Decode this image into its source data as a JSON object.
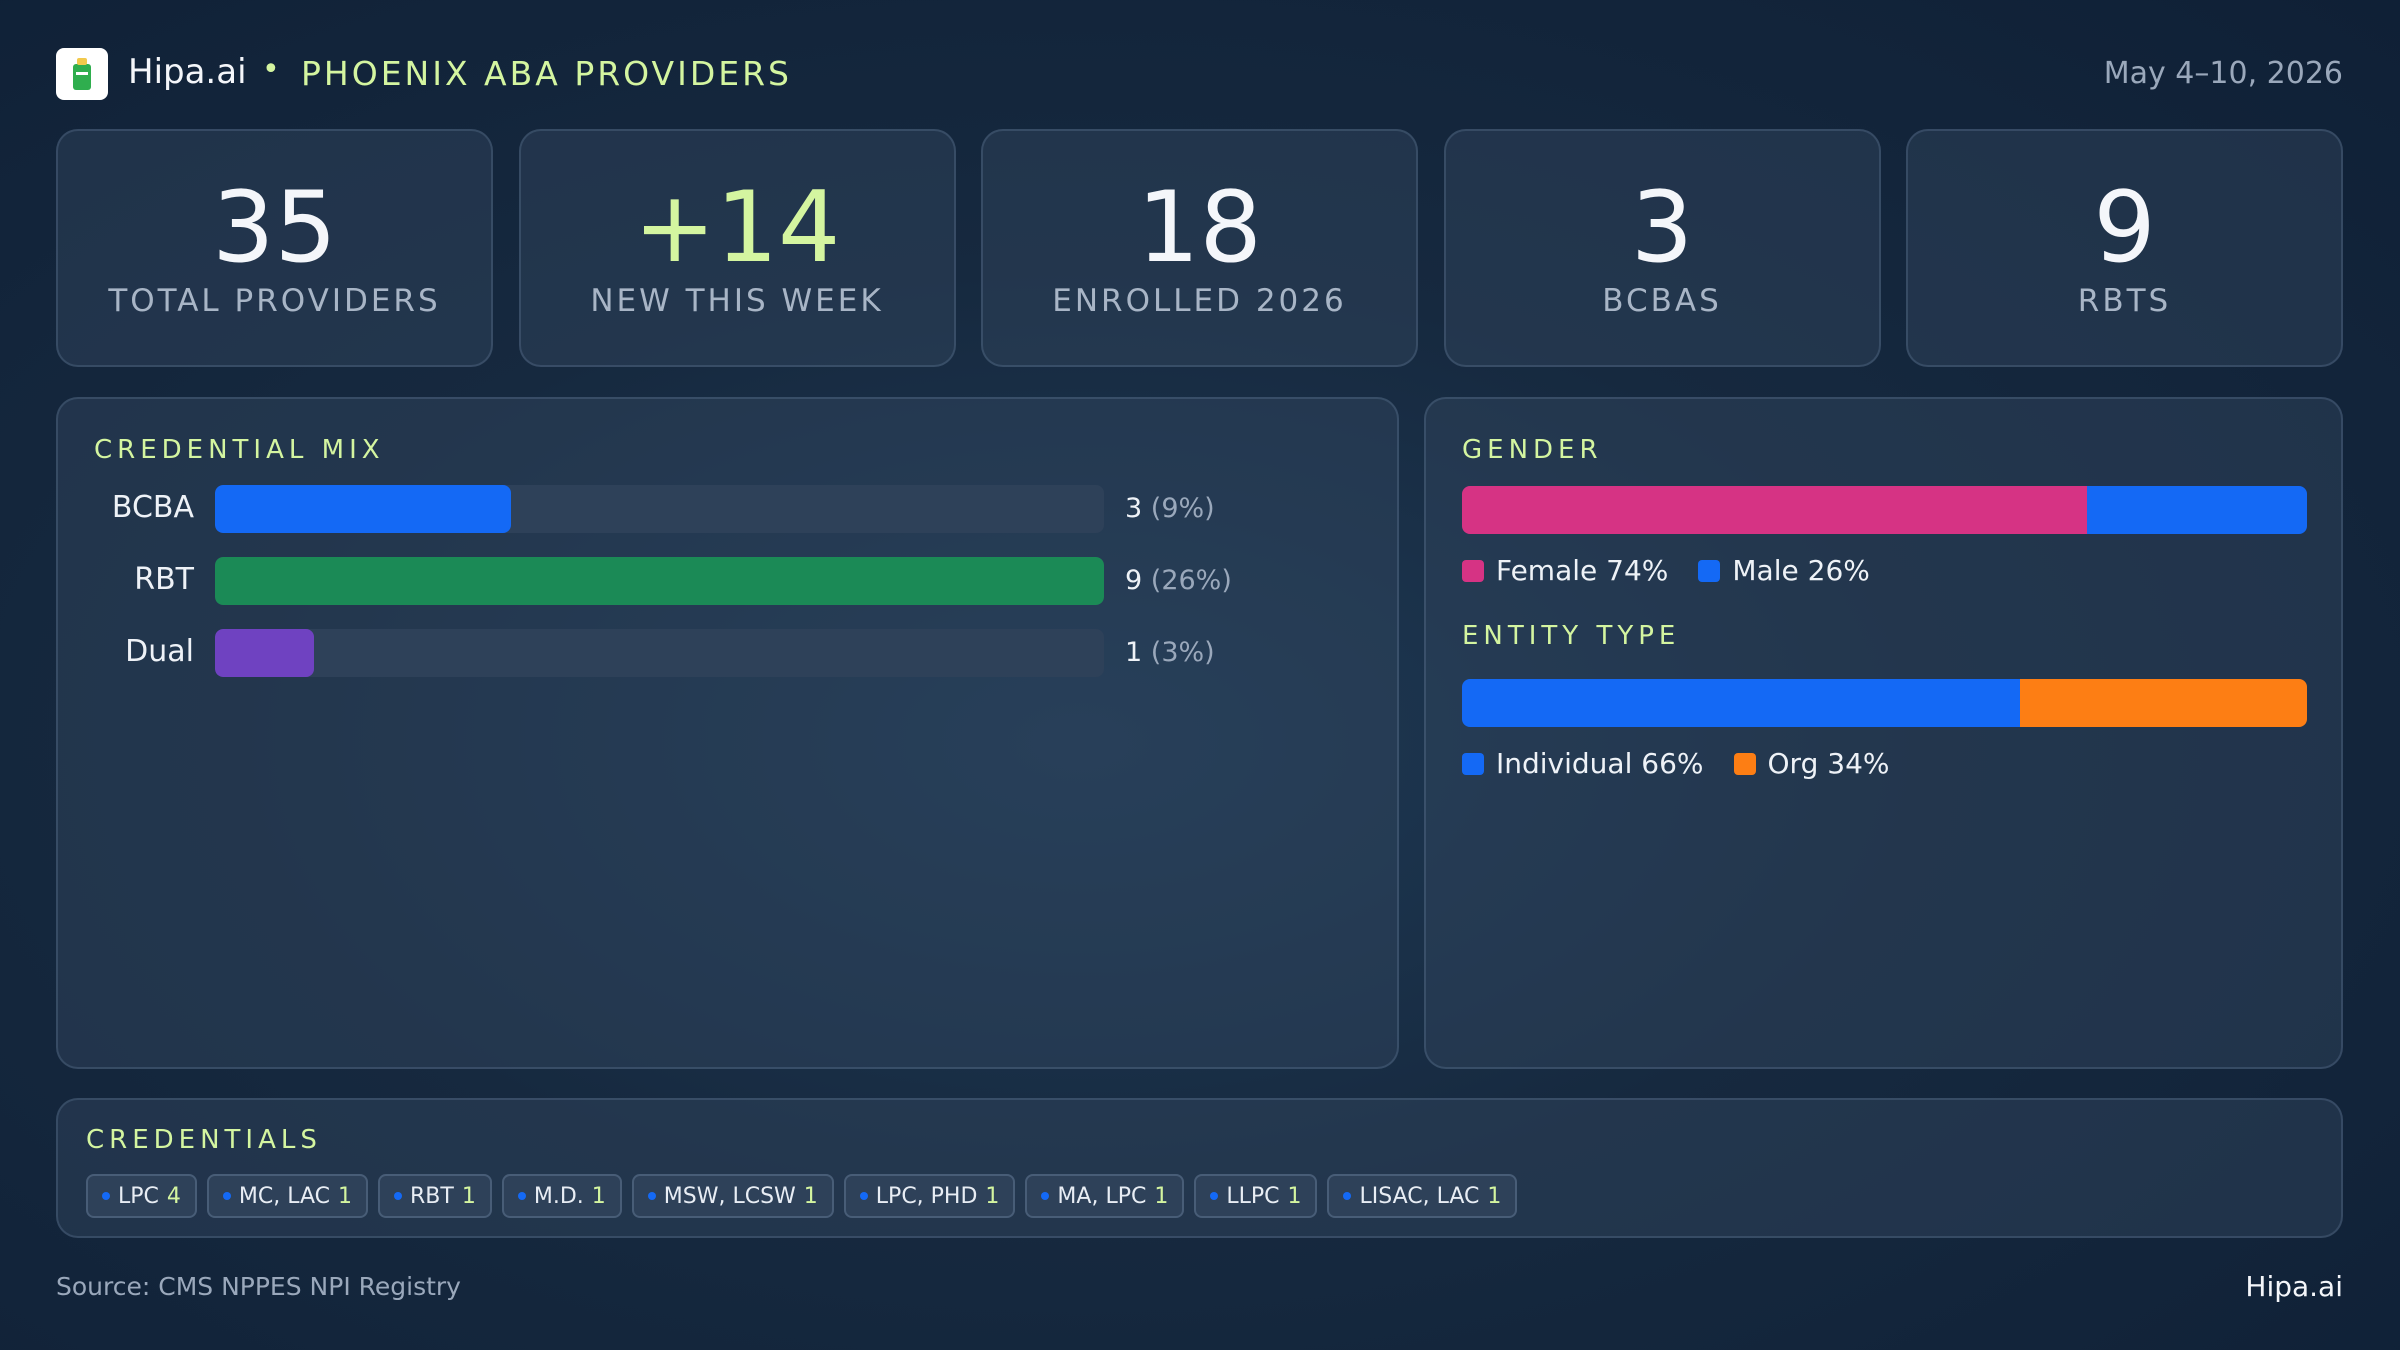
{
  "header": {
    "brand": "Hipa.ai",
    "title": "PHOENIX ABA PROVIDERS",
    "date": "May 4–10, 2026"
  },
  "kpis": [
    {
      "value": "35",
      "label": "TOTAL PROVIDERS"
    },
    {
      "value": "+14",
      "label": "NEW THIS WEEK"
    },
    {
      "value": "18",
      "label": "ENROLLED 2026"
    },
    {
      "value": "3",
      "label": "BCBAS"
    },
    {
      "value": "9",
      "label": "RBTS"
    }
  ],
  "credential_mix": {
    "title": "CREDENTIAL MIX",
    "categories": [
      "BCBA",
      "RBT",
      "Dual"
    ],
    "values": [
      3,
      9,
      1
    ],
    "pct_labels": [
      "(9%)",
      "(26%)",
      "(3%)"
    ],
    "colors": [
      "#1469f5",
      "#1b8a56",
      "#6f42c1"
    ]
  },
  "gender": {
    "title": "GENDER",
    "names": [
      "Female",
      "Male"
    ],
    "values": [
      74,
      26
    ],
    "value_labels": [
      "74%",
      "26%"
    ],
    "colors": [
      "#d63384",
      "#1469f5"
    ]
  },
  "entity_type": {
    "title": "ENTITY TYPE",
    "names": [
      "Individual",
      "Org"
    ],
    "values": [
      66,
      34
    ],
    "value_labels": [
      "66%",
      "34%"
    ],
    "colors": [
      "#1469f5",
      "#fd7e14"
    ]
  },
  "credentials": {
    "title": "CREDENTIALS",
    "items": [
      {
        "name": "LPC",
        "count": 4
      },
      {
        "name": "MC, LAC",
        "count": 1
      },
      {
        "name": "RBT",
        "count": 1
      },
      {
        "name": "M.D.",
        "count": 1
      },
      {
        "name": "MSW, LCSW",
        "count": 1
      },
      {
        "name": "LPC, PHD",
        "count": 1
      },
      {
        "name": "MA, LPC",
        "count": 1
      },
      {
        "name": "LLPC",
        "count": 1
      },
      {
        "name": "LISAC, LAC",
        "count": 1
      }
    ]
  },
  "footer": {
    "source": "Source: CMS NPPES NPI Registry",
    "brand": "Hipa.ai"
  }
}
